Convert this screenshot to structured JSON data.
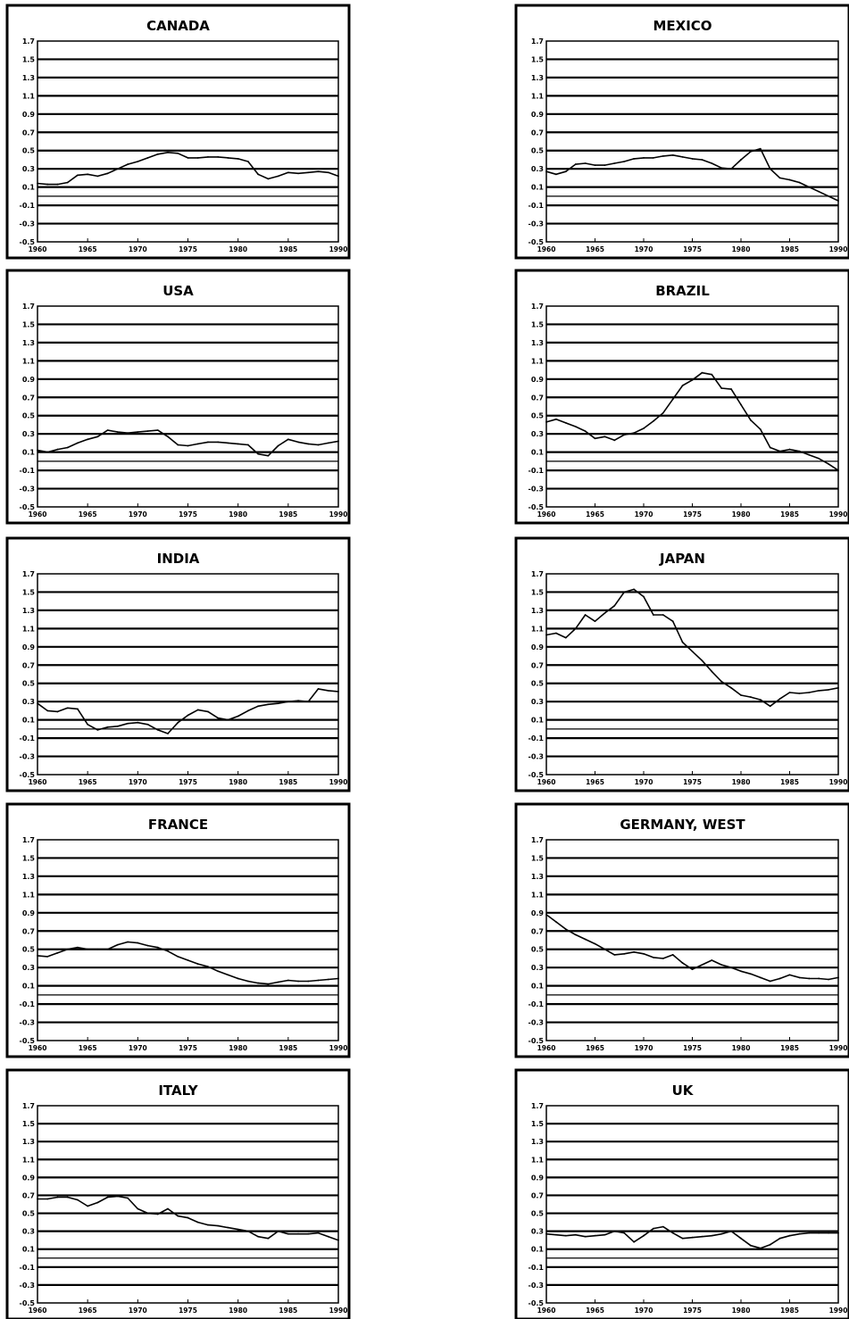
{
  "chart_data": [
    {
      "type": "line",
      "title": "CANADA",
      "ylim": [
        -0.5,
        1.7
      ],
      "xlim": [
        1960,
        1990
      ],
      "yticks": [
        "1.7",
        "1.5",
        "1.3",
        "1.1",
        "0.9",
        "0.7",
        "0.5",
        "0.3",
        "0.1",
        "-0.1",
        "-0.3",
        "-0.5"
      ],
      "xticks": [
        "1960",
        "1965",
        "1970",
        "1975",
        "1980",
        "1985",
        "1990"
      ],
      "grid": true,
      "x": [
        1960,
        1961,
        1962,
        1963,
        1964,
        1965,
        1966,
        1967,
        1968,
        1969,
        1970,
        1971,
        1972,
        1973,
        1974,
        1975,
        1976,
        1977,
        1978,
        1979,
        1980,
        1981,
        1982,
        1983,
        1984,
        1985,
        1986,
        1987,
        1988,
        1989,
        1990
      ],
      "y": [
        0.14,
        0.13,
        0.13,
        0.15,
        0.23,
        0.24,
        0.22,
        0.25,
        0.3,
        0.35,
        0.38,
        0.42,
        0.46,
        0.48,
        0.47,
        0.42,
        0.42,
        0.43,
        0.43,
        0.42,
        0.41,
        0.38,
        0.24,
        0.19,
        0.22,
        0.26,
        0.25,
        0.26,
        0.27,
        0.26,
        0.22
      ]
    },
    {
      "type": "line",
      "title": "MEXICO",
      "ylim": [
        -0.5,
        1.7
      ],
      "xlim": [
        1960,
        1990
      ],
      "yticks": [
        "1.7",
        "1.5",
        "1.3",
        "1.1",
        "0.9",
        "0.7",
        "0.5",
        "0.3",
        "0.1",
        "-0.1",
        "-0.3",
        "-0.5"
      ],
      "xticks": [
        "1960",
        "1965",
        "1970",
        "1975",
        "1980",
        "1985",
        "1990"
      ],
      "grid": true,
      "x": [
        1960,
        1961,
        1962,
        1963,
        1964,
        1965,
        1966,
        1967,
        1968,
        1969,
        1970,
        1971,
        1972,
        1973,
        1974,
        1975,
        1976,
        1977,
        1978,
        1979,
        1980,
        1981,
        1982,
        1983,
        1984,
        1985,
        1986,
        1987,
        1988,
        1989,
        1990
      ],
      "y": [
        0.27,
        0.24,
        0.27,
        0.35,
        0.36,
        0.34,
        0.34,
        0.36,
        0.38,
        0.41,
        0.42,
        0.42,
        0.44,
        0.45,
        0.43,
        0.41,
        0.4,
        0.36,
        0.31,
        0.3,
        0.4,
        0.49,
        0.52,
        0.3,
        0.2,
        0.18,
        0.15,
        0.1,
        0.05,
        0.0,
        -0.05
      ]
    },
    {
      "type": "line",
      "title": "USA",
      "ylim": [
        -0.5,
        1.7
      ],
      "xlim": [
        1960,
        1990
      ],
      "yticks": [
        "1.7",
        "1.5",
        "1.3",
        "1.1",
        "0.9",
        "0.7",
        "0.5",
        "0.3",
        "0.1",
        "-0.1",
        "-0.3",
        "-0.5"
      ],
      "xticks": [
        "1960",
        "1965",
        "1970",
        "1975",
        "1980",
        "1985",
        "1990"
      ],
      "grid": true,
      "x": [
        1960,
        1961,
        1962,
        1963,
        1964,
        1965,
        1966,
        1967,
        1968,
        1969,
        1970,
        1971,
        1972,
        1973,
        1974,
        1975,
        1976,
        1977,
        1978,
        1979,
        1980,
        1981,
        1982,
        1983,
        1984,
        1985,
        1986,
        1987,
        1988,
        1989,
        1990
      ],
      "y": [
        0.12,
        0.1,
        0.13,
        0.15,
        0.2,
        0.24,
        0.27,
        0.34,
        0.32,
        0.31,
        0.32,
        0.33,
        0.34,
        0.27,
        0.18,
        0.17,
        0.19,
        0.21,
        0.21,
        0.2,
        0.19,
        0.18,
        0.08,
        0.06,
        0.17,
        0.24,
        0.21,
        0.19,
        0.18,
        0.2,
        0.22
      ]
    },
    {
      "type": "line",
      "title": "BRAZIL",
      "ylim": [
        -0.5,
        1.7
      ],
      "xlim": [
        1960,
        1990
      ],
      "yticks": [
        "1.7",
        "1.5",
        "1.3",
        "1.1",
        "0.9",
        "0.7",
        "0.5",
        "0.3",
        "0.1",
        "-0.1",
        "-0.3",
        "-0.5"
      ],
      "xticks": [
        "1960",
        "1965",
        "1970",
        "1975",
        "1980",
        "1985",
        "1990"
      ],
      "grid": true,
      "x": [
        1960,
        1961,
        1962,
        1963,
        1964,
        1965,
        1966,
        1967,
        1968,
        1969,
        1970,
        1971,
        1972,
        1973,
        1974,
        1975,
        1976,
        1977,
        1978,
        1979,
        1980,
        1981,
        1982,
        1983,
        1984,
        1985,
        1986,
        1987,
        1988,
        1989,
        1990
      ],
      "y": [
        0.43,
        0.46,
        0.42,
        0.38,
        0.33,
        0.25,
        0.27,
        0.23,
        0.29,
        0.31,
        0.36,
        0.44,
        0.53,
        0.68,
        0.83,
        0.89,
        0.97,
        0.95,
        0.8,
        0.79,
        0.62,
        0.45,
        0.35,
        0.15,
        0.11,
        0.13,
        0.11,
        0.07,
        0.03,
        -0.03,
        -0.1
      ]
    },
    {
      "type": "line",
      "title": "INDIA",
      "ylim": [
        -0.5,
        1.7
      ],
      "xlim": [
        1960,
        1990
      ],
      "yticks": [
        "1.7",
        "1.5",
        "1.3",
        "1.1",
        "0.9",
        "0.7",
        "0.5",
        "0.3",
        "0.1",
        "-0.1",
        "-0.3",
        "-0.5"
      ],
      "xticks": [
        "1960",
        "1965",
        "1970",
        "1975",
        "1980",
        "1985",
        "1990"
      ],
      "grid": true,
      "x": [
        1960,
        1961,
        1962,
        1963,
        1964,
        1965,
        1966,
        1967,
        1968,
        1969,
        1970,
        1971,
        1972,
        1973,
        1974,
        1975,
        1976,
        1977,
        1978,
        1979,
        1980,
        1981,
        1982,
        1983,
        1984,
        1985,
        1986,
        1987,
        1988,
        1989,
        1990
      ],
      "y": [
        0.28,
        0.2,
        0.19,
        0.23,
        0.22,
        0.05,
        -0.01,
        0.02,
        0.03,
        0.06,
        0.07,
        0.05,
        -0.01,
        -0.05,
        0.07,
        0.15,
        0.21,
        0.19,
        0.12,
        0.1,
        0.14,
        0.2,
        0.25,
        0.27,
        0.28,
        0.3,
        0.31,
        0.3,
        0.44,
        0.42,
        0.41
      ]
    },
    {
      "type": "line",
      "title": "JAPAN",
      "ylim": [
        -0.5,
        1.7
      ],
      "xlim": [
        1960,
        1990
      ],
      "yticks": [
        "1.7",
        "1.5",
        "1.3",
        "1.1",
        "0.9",
        "0.7",
        "0.5",
        "0.3",
        "0.1",
        "-0.1",
        "-0.3",
        "-0.5"
      ],
      "xticks": [
        "1960",
        "1965",
        "1970",
        "1975",
        "1980",
        "1985",
        "1990"
      ],
      "grid": true,
      "x": [
        1960,
        1961,
        1962,
        1963,
        1964,
        1965,
        1966,
        1967,
        1968,
        1969,
        1970,
        1971,
        1972,
        1973,
        1974,
        1975,
        1976,
        1977,
        1978,
        1979,
        1980,
        1981,
        1982,
        1983,
        1984,
        1985,
        1986,
        1987,
        1988,
        1989,
        1990
      ],
      "y": [
        1.03,
        1.05,
        1.0,
        1.1,
        1.25,
        1.18,
        1.27,
        1.35,
        1.5,
        1.53,
        1.45,
        1.25,
        1.25,
        1.18,
        0.95,
        0.85,
        0.75,
        0.63,
        0.52,
        0.45,
        0.37,
        0.35,
        0.32,
        0.25,
        0.33,
        0.4,
        0.39,
        0.4,
        0.42,
        0.43,
        0.45
      ]
    },
    {
      "type": "line",
      "title": "FRANCE",
      "ylim": [
        -0.5,
        1.7
      ],
      "xlim": [
        1960,
        1990
      ],
      "yticks": [
        "1.7",
        "1.5",
        "1.3",
        "1.1",
        "0.9",
        "0.7",
        "0.5",
        "0.3",
        "0.1",
        "-0.1",
        "-0.3",
        "-0.5"
      ],
      "xticks": [
        "1960",
        "1965",
        "1970",
        "1975",
        "1980",
        "1985",
        "1990"
      ],
      "grid": true,
      "x": [
        1960,
        1961,
        1962,
        1963,
        1964,
        1965,
        1966,
        1967,
        1968,
        1969,
        1970,
        1971,
        1972,
        1973,
        1974,
        1975,
        1976,
        1977,
        1978,
        1979,
        1980,
        1981,
        1982,
        1983,
        1984,
        1985,
        1986,
        1987,
        1988,
        1989,
        1990
      ],
      "y": [
        0.43,
        0.42,
        0.46,
        0.5,
        0.52,
        0.5,
        0.5,
        0.5,
        0.55,
        0.58,
        0.57,
        0.54,
        0.52,
        0.48,
        0.42,
        0.38,
        0.34,
        0.31,
        0.26,
        0.22,
        0.18,
        0.15,
        0.13,
        0.12,
        0.14,
        0.16,
        0.15,
        0.15,
        0.16,
        0.17,
        0.18
      ]
    },
    {
      "type": "line",
      "title": "GERMANY,  WEST",
      "ylim": [
        -0.5,
        1.7
      ],
      "xlim": [
        1960,
        1990
      ],
      "yticks": [
        "1.7",
        "1.5",
        "1.3",
        "1.1",
        "0.9",
        "0.7",
        "0.5",
        "0.3",
        "0.1",
        "-0.1",
        "-0.3",
        "-0.5"
      ],
      "xticks": [
        "1960",
        "1965",
        "1970",
        "1975",
        "1980",
        "1985",
        "1990"
      ],
      "grid": true,
      "x": [
        1960,
        1961,
        1962,
        1963,
        1964,
        1965,
        1966,
        1967,
        1968,
        1969,
        1970,
        1971,
        1972,
        1973,
        1974,
        1975,
        1976,
        1977,
        1978,
        1979,
        1980,
        1981,
        1982,
        1983,
        1984,
        1985,
        1986,
        1987,
        1988,
        1989,
        1990
      ],
      "y": [
        0.88,
        0.8,
        0.72,
        0.66,
        0.61,
        0.56,
        0.5,
        0.44,
        0.45,
        0.47,
        0.45,
        0.41,
        0.4,
        0.44,
        0.35,
        0.28,
        0.33,
        0.38,
        0.33,
        0.3,
        0.26,
        0.23,
        0.19,
        0.15,
        0.18,
        0.22,
        0.19,
        0.18,
        0.18,
        0.17,
        0.19
      ]
    },
    {
      "type": "line",
      "title": "ITALY",
      "ylim": [
        -0.5,
        1.7
      ],
      "xlim": [
        1960,
        1990
      ],
      "yticks": [
        "1.7",
        "1.5",
        "1.3",
        "1.1",
        "0.9",
        "0.7",
        "0.5",
        "0.3",
        "0.1",
        "-0.1",
        "-0.3",
        "-0.5"
      ],
      "xticks": [
        "1960",
        "1965",
        "1970",
        "1975",
        "1980",
        "1985",
        "1990"
      ],
      "grid": true,
      "x": [
        1960,
        1961,
        1962,
        1963,
        1964,
        1965,
        1966,
        1967,
        1968,
        1969,
        1970,
        1971,
        1972,
        1973,
        1974,
        1975,
        1976,
        1977,
        1978,
        1979,
        1980,
        1981,
        1982,
        1983,
        1984,
        1985,
        1986,
        1987,
        1988,
        1989,
        1990
      ],
      "y": [
        0.66,
        0.66,
        0.68,
        0.68,
        0.65,
        0.58,
        0.62,
        0.68,
        0.69,
        0.67,
        0.55,
        0.5,
        0.49,
        0.55,
        0.47,
        0.45,
        0.4,
        0.37,
        0.36,
        0.34,
        0.32,
        0.3,
        0.24,
        0.22,
        0.3,
        0.27,
        0.27,
        0.27,
        0.28,
        0.24,
        0.2
      ]
    },
    {
      "type": "line",
      "title": "UK",
      "ylim": [
        -0.5,
        1.7
      ],
      "xlim": [
        1960,
        1990
      ],
      "yticks": [
        "1.7",
        "1.5",
        "1.3",
        "1.1",
        "0.9",
        "0.7",
        "0.5",
        "0.3",
        "0.1",
        "-0.1",
        "-0.3",
        "-0.5"
      ],
      "xticks": [
        "1960",
        "1965",
        "1970",
        "1975",
        "1980",
        "1985",
        "1990"
      ],
      "grid": true,
      "x": [
        1960,
        1961,
        1962,
        1963,
        1964,
        1965,
        1966,
        1967,
        1968,
        1969,
        1970,
        1971,
        1972,
        1973,
        1974,
        1975,
        1976,
        1977,
        1978,
        1979,
        1980,
        1981,
        1982,
        1983,
        1984,
        1985,
        1986,
        1987,
        1988,
        1989,
        1990
      ],
      "y": [
        0.27,
        0.26,
        0.25,
        0.26,
        0.24,
        0.25,
        0.26,
        0.3,
        0.28,
        0.18,
        0.25,
        0.33,
        0.35,
        0.28,
        0.22,
        0.23,
        0.24,
        0.25,
        0.27,
        0.3,
        0.22,
        0.14,
        0.11,
        0.15,
        0.22,
        0.25,
        0.27,
        0.28,
        0.28,
        0.28,
        0.28
      ]
    }
  ]
}
